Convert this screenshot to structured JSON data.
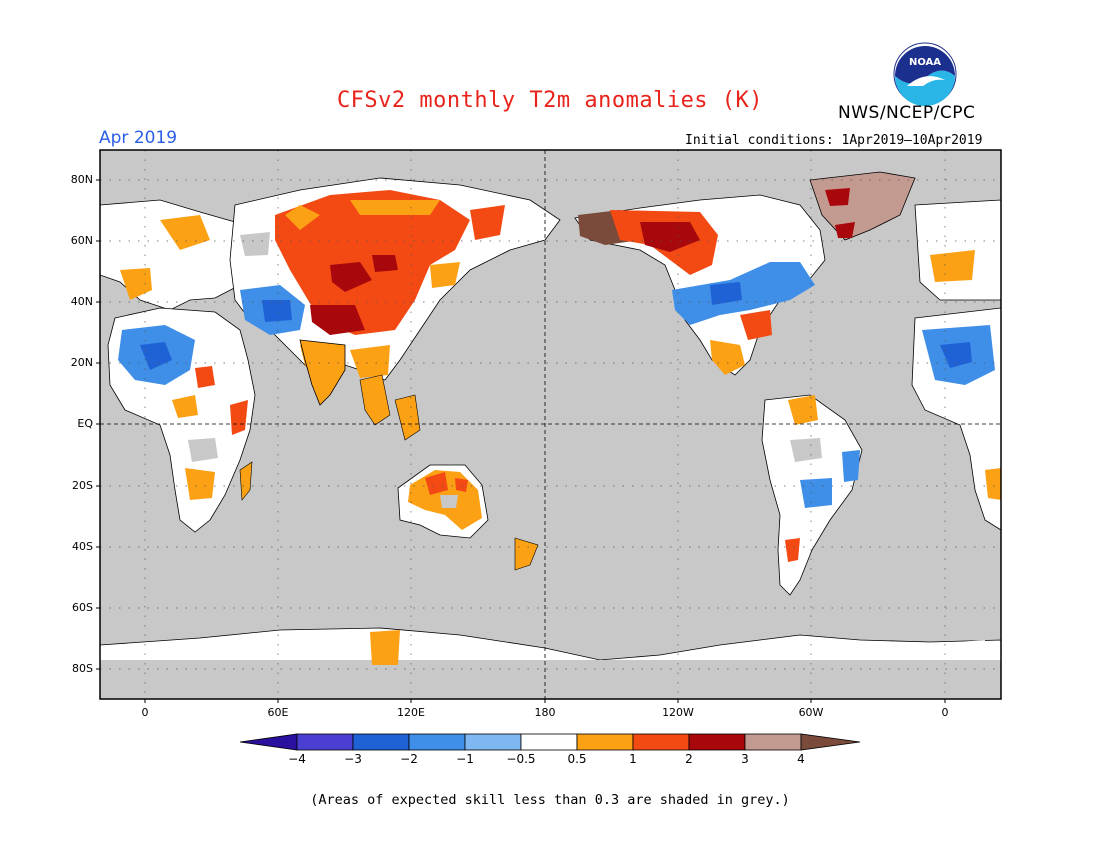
{
  "header": {
    "title": "CFSv2 monthly T2m anomalies (K)",
    "agency": "NWS/NCEP/CPC",
    "logo_text": "NOAA",
    "month": "Apr 2019",
    "initial_conditions": "Initial conditions: 1Apr2019–10Apr2019"
  },
  "map": {
    "projection": "equirectangular",
    "center_longitude": 180,
    "lat_labels": [
      "80N",
      "60N",
      "40N",
      "20N",
      "EQ",
      "20S",
      "40S",
      "60S",
      "80S"
    ],
    "lon_labels": [
      "0",
      "60E",
      "120E",
      "180",
      "120W",
      "60W",
      "0"
    ],
    "background_color": "#c8c8c8",
    "grid": "dotted"
  },
  "colorbar": {
    "tick_labels": [
      "−4",
      "−3",
      "−2",
      "−1",
      "−0.5",
      "0.5",
      "1",
      "2",
      "3",
      "4"
    ],
    "colors": [
      "#2b0f9e",
      "#4a3fd0",
      "#1f62d6",
      "#3f8ee8",
      "#7fb7f0",
      "#ffffff",
      "#fca014",
      "#f34a14",
      "#a8070c",
      "#c39a90",
      "#7a4a3a"
    ]
  },
  "footnote": "(Areas of expected skill less than 0.3 are shaded in grey.)"
}
